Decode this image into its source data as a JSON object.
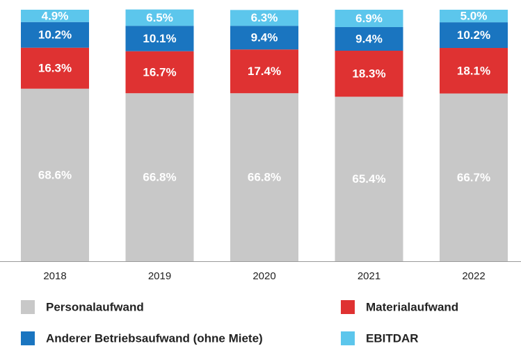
{
  "chart_data": {
    "type": "stacked-bar",
    "categories": [
      "2018",
      "2019",
      "2020",
      "2021",
      "2022"
    ],
    "ylim": [
      0,
      100
    ],
    "series": [
      {
        "name": "Personalaufwand",
        "color": "#c8c8c8",
        "values": [
          68.6,
          66.8,
          66.8,
          65.4,
          66.7
        ],
        "value_labels": [
          "68.6%",
          "66.8%",
          "66.8%",
          "65.4%",
          "66.7%"
        ]
      },
      {
        "name": "Materialaufwand",
        "color": "#df3232",
        "values": [
          16.3,
          16.7,
          17.4,
          18.3,
          18.1
        ],
        "value_labels": [
          "16.3%",
          "16.7%",
          "17.4%",
          "18.3%",
          "18.1%"
        ]
      },
      {
        "name": "Anderer Betriebsaufwand (ohne Miete)",
        "color": "#1a75c0",
        "values": [
          10.2,
          10.1,
          9.4,
          9.4,
          10.2
        ],
        "value_labels": [
          "10.2%",
          "10.1%",
          "9.4%",
          "9.4%",
          "10.2%"
        ]
      },
      {
        "name": "EBITDAR",
        "color": "#5cc6ec",
        "values": [
          4.9,
          6.5,
          6.3,
          6.9,
          5.0
        ],
        "value_labels": [
          "4.9%",
          "6.5%",
          "6.3%",
          "6.9%",
          "5.0%"
        ]
      }
    ]
  }
}
